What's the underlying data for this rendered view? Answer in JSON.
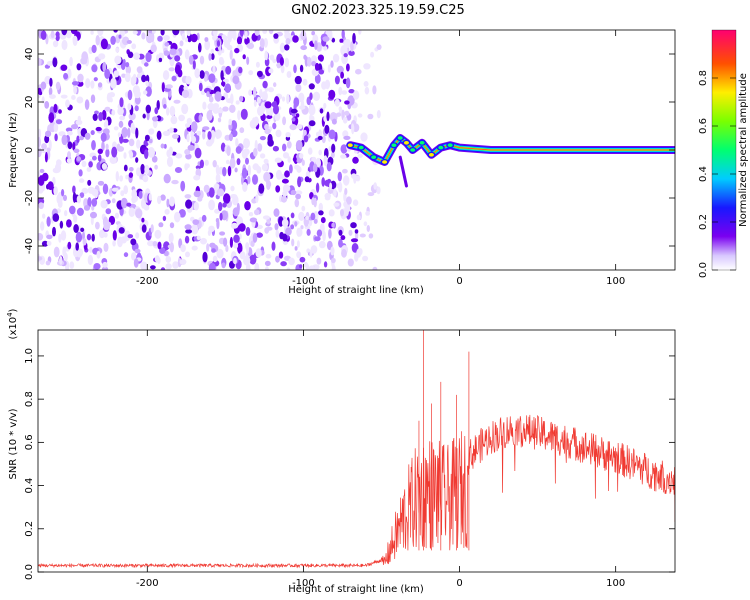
{
  "title": "GN02.2023.325.19.59.C25",
  "chart_data": [
    {
      "type": "heatmap",
      "xlabel": "Height of straight line (km)",
      "ylabel": "Frequency (Hz)",
      "xlim": [
        -270,
        138
      ],
      "ylim": [
        -50,
        50
      ],
      "x_ticks": [
        -200,
        -100,
        0,
        100
      ],
      "y_ticks": [
        -40,
        -20,
        0,
        20,
        40
      ],
      "noise_region_x": [
        -270,
        -65
      ],
      "signal_path": [
        {
          "x": -70,
          "y": 2
        },
        {
          "x": -63,
          "y": 1
        },
        {
          "x": -55,
          "y": -3
        },
        {
          "x": -48,
          "y": -5
        },
        {
          "x": -42,
          "y": 2
        },
        {
          "x": -38,
          "y": 5
        },
        {
          "x": -34,
          "y": 3
        },
        {
          "x": -30,
          "y": 0
        },
        {
          "x": -24,
          "y": 3
        },
        {
          "x": -18,
          "y": -2
        },
        {
          "x": -12,
          "y": 1
        },
        {
          "x": -6,
          "y": 2
        },
        {
          "x": 0,
          "y": 1
        },
        {
          "x": 20,
          "y": 0
        },
        {
          "x": 60,
          "y": 0
        },
        {
          "x": 100,
          "y": 0
        },
        {
          "x": 138,
          "y": 0
        }
      ],
      "colorbar": {
        "label": "Normalized spectral amplitude",
        "range": [
          0,
          1
        ],
        "ticks": [
          "0.0",
          "0.2",
          "0.4",
          "0.6",
          "0.8"
        ]
      }
    },
    {
      "type": "line",
      "xlabel": "Height of straight line (km)",
      "ylabel": "SNR (10 * v/v)",
      "y_multiplier": "(x10",
      "y_multiplier_exp": "4",
      "xlim": [
        -270,
        138
      ],
      "ylim": [
        0,
        1.12
      ],
      "x_ticks": [
        -200,
        -100,
        0,
        100
      ],
      "y_ticks": [
        "0.0",
        "0.2",
        "0.4",
        "0.6",
        "0.8",
        "1.0"
      ],
      "color": "#f03a32",
      "envelope": [
        {
          "x": -270,
          "y": 0.03
        },
        {
          "x": -60,
          "y": 0.03
        },
        {
          "x": -48,
          "y": 0.06
        },
        {
          "x": -44,
          "y": 0.15
        },
        {
          "x": -35,
          "y": 0.35
        },
        {
          "x": -28,
          "y": 0.45
        },
        {
          "x": -22,
          "y": 0.5
        },
        {
          "x": -15,
          "y": 0.48
        },
        {
          "x": -8,
          "y": 0.45
        },
        {
          "x": 0,
          "y": 0.5
        },
        {
          "x": 10,
          "y": 0.58
        },
        {
          "x": 20,
          "y": 0.64
        },
        {
          "x": 35,
          "y": 0.68
        },
        {
          "x": 50,
          "y": 0.66
        },
        {
          "x": 70,
          "y": 0.62
        },
        {
          "x": 90,
          "y": 0.57
        },
        {
          "x": 110,
          "y": 0.52
        },
        {
          "x": 125,
          "y": 0.47
        },
        {
          "x": 138,
          "y": 0.44
        }
      ],
      "spikes": [
        {
          "x": -23,
          "y": 1.12
        },
        {
          "x": -26,
          "y": 0.7
        },
        {
          "x": 6,
          "y": 1.02
        },
        {
          "x": -12,
          "y": 0.88
        },
        {
          "x": -2,
          "y": 0.82
        },
        {
          "x": -18,
          "y": 0.78
        }
      ]
    }
  ]
}
